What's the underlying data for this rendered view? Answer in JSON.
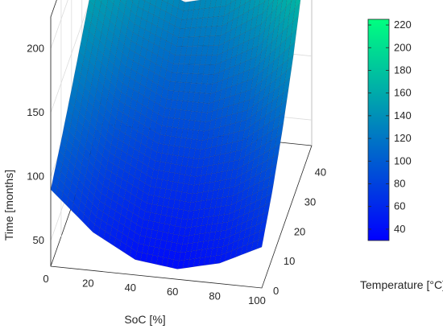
{
  "chart_data": {
    "type": "surface",
    "xlabel": "SoC [%]",
    "ylabel": "Temperature [°C]",
    "zlabel": "Time [months]",
    "xlim": [
      0,
      100
    ],
    "ylim": [
      0,
      48
    ],
    "zlim": [
      30,
      225
    ],
    "x_ticks": [
      "0",
      "20",
      "40",
      "60",
      "80",
      "100"
    ],
    "y_ticks": [
      "0",
      "10",
      "20",
      "30",
      "40"
    ],
    "z_ticks": [
      "50",
      "100",
      "150",
      "200"
    ],
    "colorbar": {
      "ticks": [
        "40",
        "60",
        "80",
        "100",
        "120",
        "140",
        "160",
        "180",
        "200",
        "220"
      ],
      "range": [
        30,
        225
      ],
      "colormap": "winter",
      "low_color": "#0000ff",
      "high_color": "#00ff80"
    },
    "surface_grid": {
      "x": [
        0,
        20,
        40,
        60,
        80,
        100
      ],
      "y": [
        0,
        10,
        20,
        30,
        40,
        48
      ],
      "z": [
        [
          90,
          60,
          42,
          38,
          46,
          62
        ],
        [
          105,
          75,
          58,
          55,
          63,
          82
        ],
        [
          122,
          92,
          76,
          74,
          84,
          108
        ],
        [
          140,
          112,
          96,
          96,
          110,
          140
        ],
        [
          158,
          130,
          116,
          120,
          140,
          180
        ],
        [
          172,
          145,
          132,
          140,
          165,
          220
        ]
      ]
    },
    "grid": true,
    "legend": "none"
  }
}
